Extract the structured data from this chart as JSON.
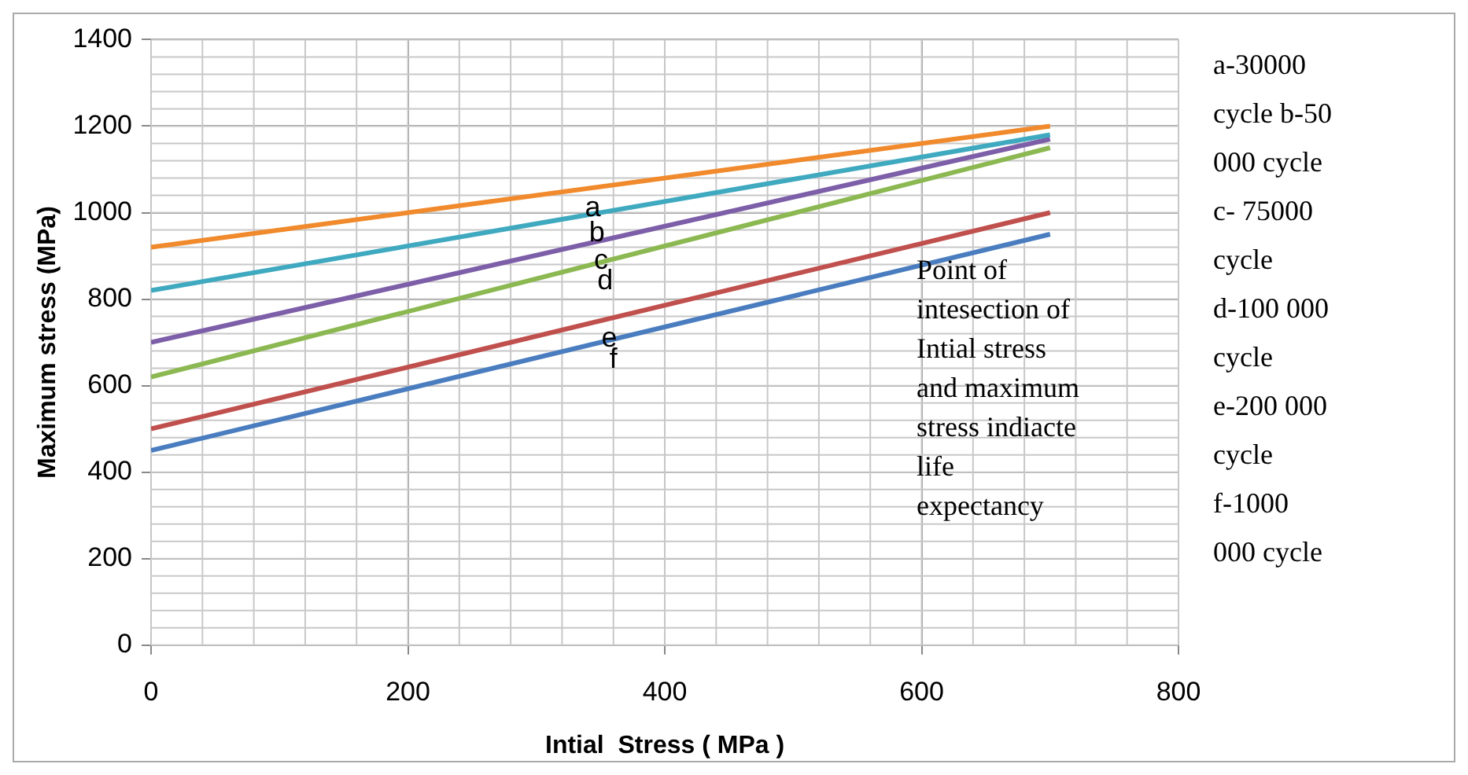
{
  "chart_data": {
    "type": "line",
    "xlabel": "Intial  Stress ( MPa )",
    "ylabel": "Maximum stress (MPa)",
    "x": [
      0,
      700
    ],
    "series": [
      {
        "color": "#f08a2c",
        "values": [
          920,
          1200
        ]
      },
      {
        "color": "#3fa9c0",
        "values": [
          820,
          1180
        ]
      },
      {
        "color": "#7d5ea8",
        "values": [
          700,
          1170
        ]
      },
      {
        "color": "#8cb852",
        "values": [
          620,
          1150
        ]
      },
      {
        "color": "#c0504d",
        "values": [
          500,
          1000
        ]
      },
      {
        "color": "#4a7dbf",
        "values": [
          450,
          950
        ]
      }
    ],
    "xlim": [
      0,
      800
    ],
    "xticks": [
      0,
      200,
      400,
      600,
      800
    ],
    "ylim": [
      0,
      1400
    ],
    "yticks": [
      0,
      200,
      400,
      600,
      800,
      {
        "value": 1000,
        "label": "1000"
      },
      {
        "value": 1200,
        "label": "1200"
      },
      {
        "value": 1400,
        "label": "1400"
      }
    ],
    "grid": true,
    "legend": false,
    "marker": "none",
    "line_style": "solid",
    "annotations": [
      "a",
      "b",
      "c",
      "d",
      "e",
      "f",
      "Point of intesection of Intial stress and maximum stress indiacte life expectancy",
      "a-30000 cycle b-50 000 cycle c- 75000 cycle d-100 000 cycle e-200 000 cycle f-1000 000 cycle"
    ]
  }
}
